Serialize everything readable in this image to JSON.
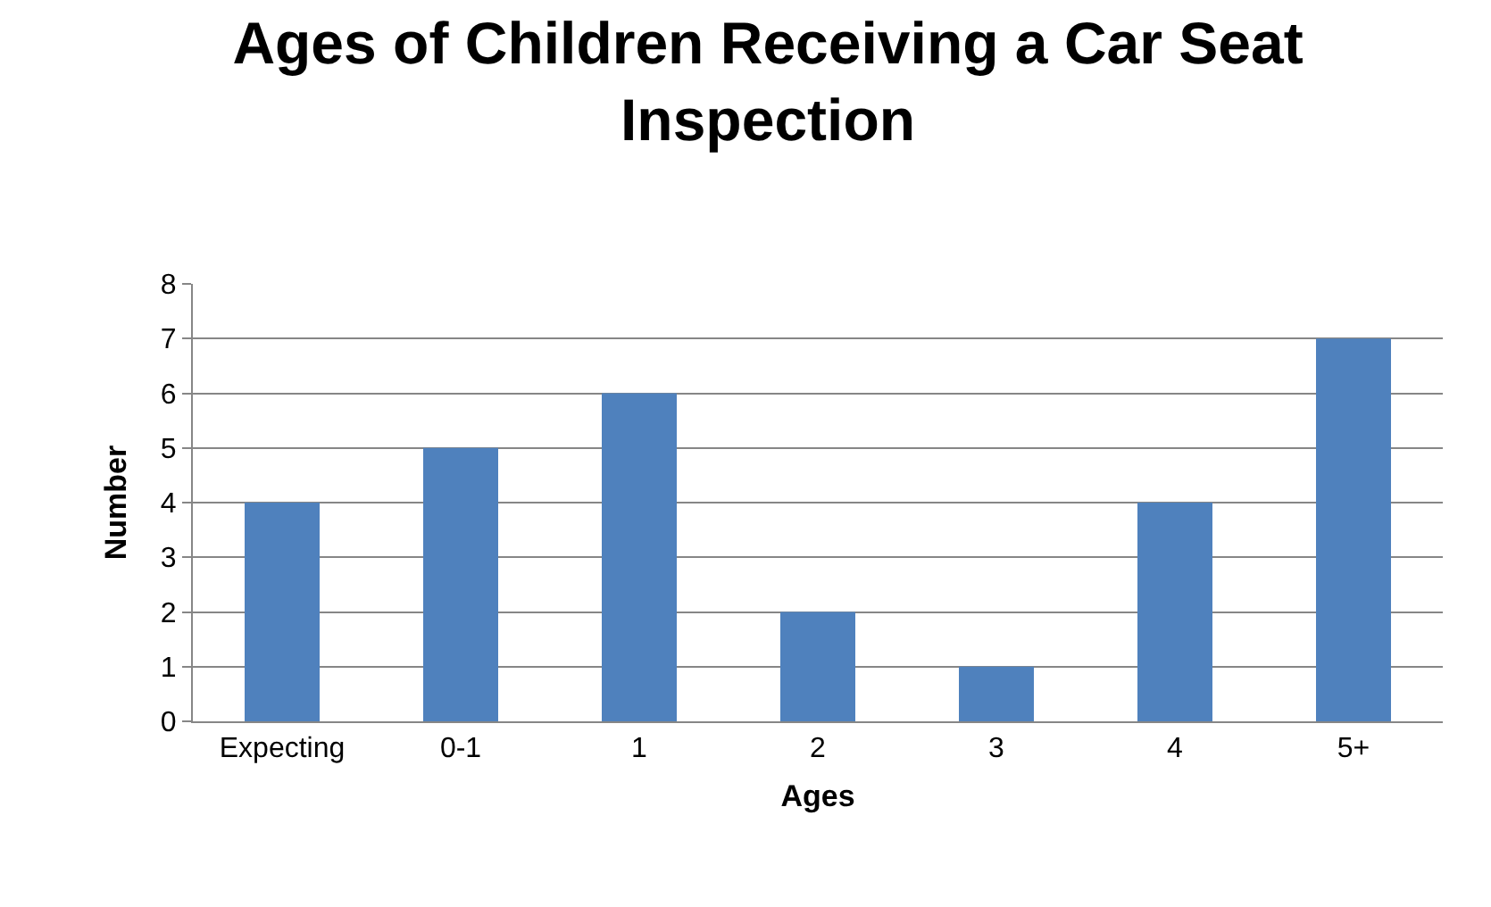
{
  "chart_data": {
    "type": "bar",
    "title": "Ages of Children Receiving a Car Seat Inspection",
    "xlabel": "Ages",
    "ylabel": "Number",
    "categories": [
      "Expecting",
      "0-1",
      "1",
      "2",
      "3",
      "4",
      "5+"
    ],
    "values": [
      4,
      5,
      6,
      2,
      1,
      4,
      7
    ],
    "color": "#4f81bd",
    "ylim": [
      0,
      8
    ],
    "yticks": [
      0,
      1,
      2,
      3,
      4,
      5,
      6,
      7,
      8
    ],
    "grid": "y"
  }
}
